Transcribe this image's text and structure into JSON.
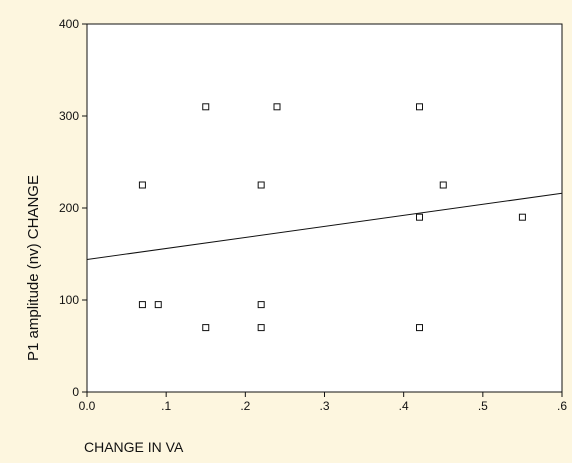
{
  "chart_data": {
    "type": "scatter",
    "title": "",
    "xlabel": "CHANGE IN VA",
    "ylabel": "P1 amplitude (nv) CHANGE",
    "xlim": [
      0,
      0.6
    ],
    "ylim": [
      0,
      400
    ],
    "x_ticks": [
      0,
      0.1,
      0.2,
      0.3,
      0.4,
      0.5,
      0.6
    ],
    "x_tick_labels": [
      "0.0",
      ".1",
      ".2",
      ".3",
      ".4",
      ".5",
      ".6"
    ],
    "y_ticks": [
      0,
      100,
      200,
      300,
      400
    ],
    "y_tick_labels": [
      "0",
      "100",
      "200",
      "300",
      "400"
    ],
    "grid": false,
    "legend": "none",
    "marker": "open-square",
    "series": [
      {
        "points": [
          {
            "x": 0.07,
            "y": 225
          },
          {
            "x": 0.07,
            "y": 95
          },
          {
            "x": 0.09,
            "y": 95
          },
          {
            "x": 0.15,
            "y": 310
          },
          {
            "x": 0.15,
            "y": 70
          },
          {
            "x": 0.22,
            "y": 225
          },
          {
            "x": 0.22,
            "y": 95
          },
          {
            "x": 0.22,
            "y": 70
          },
          {
            "x": 0.24,
            "y": 310
          },
          {
            "x": 0.42,
            "y": 310
          },
          {
            "x": 0.42,
            "y": 190
          },
          {
            "x": 0.42,
            "y": 70
          },
          {
            "x": 0.45,
            "y": 225
          },
          {
            "x": 0.55,
            "y": 190
          }
        ]
      }
    ],
    "fit_line": {
      "x_start": 0,
      "y_start": 144,
      "x_end": 0.6,
      "y_end": 216
    },
    "colors": {
      "background": "#fdf6df",
      "plot_area": "#ffffff",
      "ink": "#111111"
    }
  }
}
